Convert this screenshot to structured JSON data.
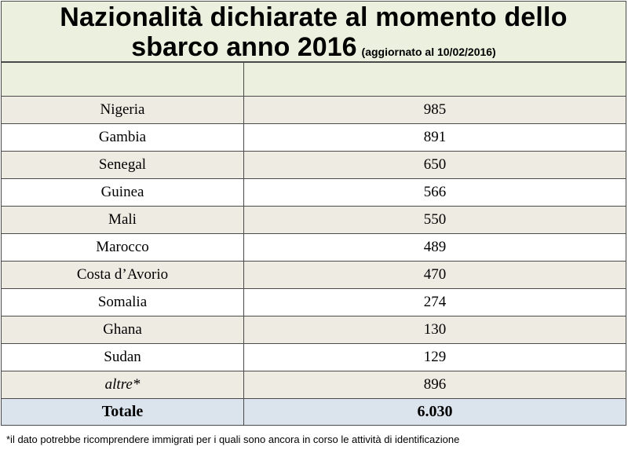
{
  "title": {
    "line1": "Nazionalità dichiarate al momento dello",
    "line2": "sbarco anno 2016",
    "note": "(aggiornato al 10/02/2016)"
  },
  "header": {
    "col1": "",
    "col2": ""
  },
  "chart_data": {
    "type": "table",
    "title": "Nazionalità dichiarate al momento dello sbarco anno 2016",
    "subtitle": "(aggiornato al 10/02/2016)",
    "rows": [
      {
        "label": "Nigeria",
        "value": "985"
      },
      {
        "label": "Gambia",
        "value": "891"
      },
      {
        "label": "Senegal",
        "value": "650"
      },
      {
        "label": "Guinea",
        "value": "566"
      },
      {
        "label": "Mali",
        "value": "550"
      },
      {
        "label": "Marocco",
        "value": "489"
      },
      {
        "label": "Costa d’Avorio",
        "value": "470"
      },
      {
        "label": "Somalia",
        "value": "274"
      },
      {
        "label": "Ghana",
        "value": "130"
      },
      {
        "label": "Sudan",
        "value": "129"
      },
      {
        "label": "altre*",
        "value": "896"
      }
    ],
    "total": {
      "label": "Totale",
      "value": "6.030"
    }
  },
  "footnote": "*il dato potrebbe ricomprendere immigrati per i quali sono ancora in corso le attività di identificazione"
}
